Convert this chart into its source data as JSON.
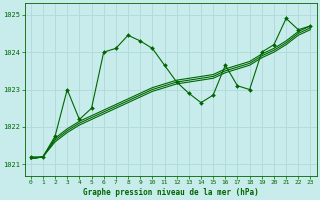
{
  "title": "Graphe pression niveau de la mer (hPa)",
  "background_color": "#c8ecec",
  "grid_color": "#b0d8d8",
  "line_color": "#006600",
  "ylim": [
    1020.7,
    1025.3
  ],
  "xlim": [
    -0.5,
    23.5
  ],
  "yticks": [
    1021,
    1022,
    1023,
    1024,
    1025
  ],
  "xticks": [
    0,
    1,
    2,
    3,
    4,
    5,
    6,
    7,
    8,
    9,
    10,
    11,
    12,
    13,
    14,
    15,
    16,
    17,
    18,
    19,
    20,
    21,
    22,
    23
  ],
  "series_main": [
    1021.2,
    1021.2,
    1021.75,
    1023.0,
    1022.2,
    1022.5,
    1024.0,
    1024.1,
    1024.45,
    1024.3,
    1024.1,
    1023.65,
    1023.2,
    1022.9,
    1022.65,
    1022.85,
    1023.65,
    1023.1,
    1023.0,
    1024.0,
    1024.2,
    1024.9,
    1024.6,
    1024.7
  ],
  "series_linear": [
    [
      1021.15,
      1021.2,
      1021.6,
      1021.85,
      1022.05,
      1022.2,
      1022.35,
      1022.5,
      1022.65,
      1022.8,
      1022.95,
      1023.05,
      1023.15,
      1023.2,
      1023.25,
      1023.3,
      1023.45,
      1023.55,
      1023.65,
      1023.85,
      1024.0,
      1024.2,
      1024.45,
      1024.6
    ],
    [
      1021.15,
      1021.2,
      1021.65,
      1021.9,
      1022.1,
      1022.25,
      1022.4,
      1022.55,
      1022.7,
      1022.85,
      1023.0,
      1023.1,
      1023.2,
      1023.25,
      1023.3,
      1023.35,
      1023.5,
      1023.6,
      1023.7,
      1023.9,
      1024.05,
      1024.25,
      1024.5,
      1024.65
    ],
    [
      1021.15,
      1021.2,
      1021.7,
      1021.95,
      1022.15,
      1022.3,
      1022.45,
      1022.6,
      1022.75,
      1022.9,
      1023.05,
      1023.15,
      1023.25,
      1023.3,
      1023.35,
      1023.4,
      1023.55,
      1023.65,
      1023.75,
      1023.95,
      1024.1,
      1024.3,
      1024.55,
      1024.7
    ]
  ]
}
